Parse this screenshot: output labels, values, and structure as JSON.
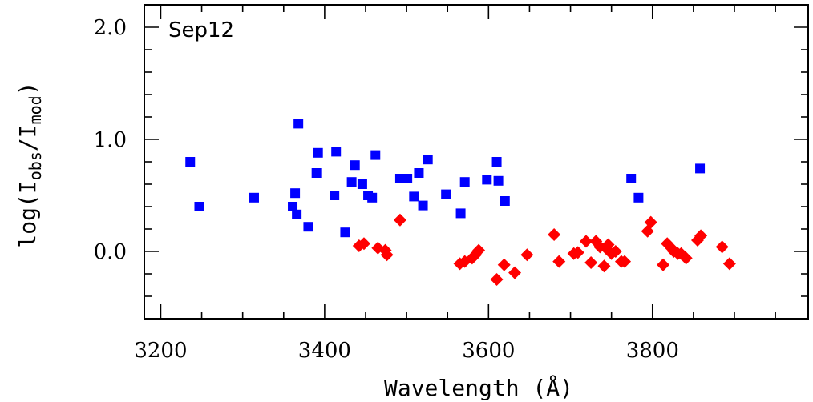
{
  "chart_data": {
    "type": "scatter",
    "title": "",
    "annotation": "Sep12",
    "xlabel": "Wavelength (Å)",
    "ylabel": {
      "base": "log(I",
      "sub1": "obs",
      "mid": "/I",
      "sub2": "mod",
      "end": ")"
    },
    "xlim": [
      3180,
      3990
    ],
    "ylim": [
      -0.6,
      2.2
    ],
    "xticks": [
      3200,
      3400,
      3600,
      3800
    ],
    "yticks": [
      0.0,
      1.0,
      2.0
    ],
    "xtick_labels": [
      "3200",
      "3400",
      "3600",
      "3800"
    ],
    "ytick_labels": [
      "0.0",
      "1.0",
      "2.0"
    ],
    "series": [
      {
        "name": "blue",
        "marker": "square",
        "color": "#0000ff",
        "points": [
          [
            3236,
            0.8
          ],
          [
            3247,
            0.4
          ],
          [
            3314,
            0.48
          ],
          [
            3361,
            0.4
          ],
          [
            3364,
            0.52
          ],
          [
            3366,
            0.33
          ],
          [
            3368,
            1.14
          ],
          [
            3380,
            0.22
          ],
          [
            3390,
            0.7
          ],
          [
            3392,
            0.88
          ],
          [
            3412,
            0.5
          ],
          [
            3414,
            0.89
          ],
          [
            3425,
            0.17
          ],
          [
            3433,
            0.62
          ],
          [
            3437,
            0.77
          ],
          [
            3446,
            0.6
          ],
          [
            3453,
            0.5
          ],
          [
            3458,
            0.48
          ],
          [
            3462,
            0.86
          ],
          [
            3492,
            0.65
          ],
          [
            3501,
            0.65
          ],
          [
            3509,
            0.49
          ],
          [
            3515,
            0.7
          ],
          [
            3520,
            0.41
          ],
          [
            3526,
            0.82
          ],
          [
            3548,
            0.51
          ],
          [
            3566,
            0.34
          ],
          [
            3571,
            0.62
          ],
          [
            3598,
            0.64
          ],
          [
            3610,
            0.8
          ],
          [
            3612,
            0.63
          ],
          [
            3620,
            0.45
          ],
          [
            3774,
            0.65
          ],
          [
            3783,
            0.48
          ],
          [
            3858,
            0.74
          ]
        ]
      },
      {
        "name": "red",
        "marker": "diamond",
        "color": "#ff0000",
        "points": [
          [
            3442,
            0.05
          ],
          [
            3448,
            0.07
          ],
          [
            3465,
            0.03
          ],
          [
            3474,
            0.01
          ],
          [
            3476,
            -0.03
          ],
          [
            3492,
            0.28
          ],
          [
            3565,
            -0.11
          ],
          [
            3571,
            -0.09
          ],
          [
            3580,
            -0.06
          ],
          [
            3584,
            -0.03
          ],
          [
            3588,
            0.01
          ],
          [
            3610,
            -0.25
          ],
          [
            3619,
            -0.12
          ],
          [
            3632,
            -0.19
          ],
          [
            3647,
            -0.03
          ],
          [
            3680,
            0.15
          ],
          [
            3686,
            -0.09
          ],
          [
            3704,
            -0.02
          ],
          [
            3709,
            -0.01
          ],
          [
            3719,
            0.09
          ],
          [
            3725,
            -0.1
          ],
          [
            3731,
            0.09
          ],
          [
            3736,
            0.04
          ],
          [
            3741,
            -0.13
          ],
          [
            3743,
            0.03
          ],
          [
            3746,
            0.06
          ],
          [
            3750,
            -0.02
          ],
          [
            3755,
            0.0
          ],
          [
            3762,
            -0.09
          ],
          [
            3766,
            -0.09
          ],
          [
            3794,
            0.18
          ],
          [
            3798,
            0.26
          ],
          [
            3813,
            -0.12
          ],
          [
            3818,
            0.07
          ],
          [
            3823,
            0.03
          ],
          [
            3826,
            0.0
          ],
          [
            3831,
            -0.02
          ],
          [
            3835,
            -0.02
          ],
          [
            3841,
            -0.06
          ],
          [
            3855,
            0.1
          ],
          [
            3859,
            0.14
          ],
          [
            3885,
            0.04
          ],
          [
            3894,
            -0.11
          ]
        ]
      }
    ]
  }
}
